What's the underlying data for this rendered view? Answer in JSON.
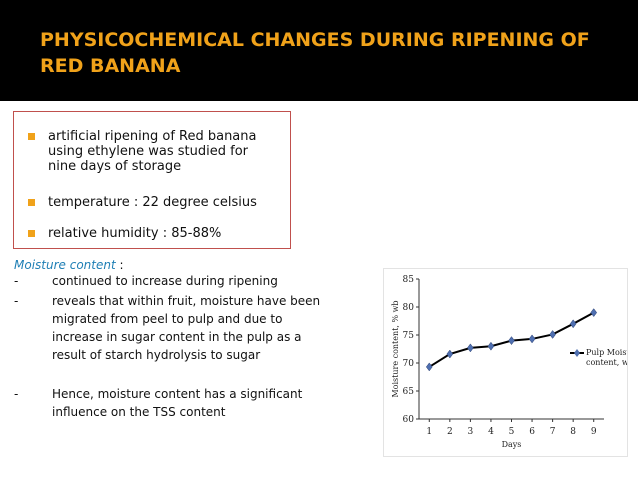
{
  "slide": {
    "title": "PHYSICOCHEMICAL CHANGES DURING RIPENING OF RED BANANA",
    "accent_color": "#f0a21a",
    "box_border_color": "#c0504d",
    "bullets": [
      {
        "text": "artificial ripening of Red banana using ethylene was studied for nine days of storage"
      },
      {
        "text": "temperature : 22 degree celsius"
      },
      {
        "text": "relative humidity : 85-88%"
      }
    ],
    "moisture": {
      "heading": "Moisture content",
      "colon": " :",
      "points": [
        {
          "dash": "-",
          "text": "continued to increase during ripening"
        },
        {
          "dash": "-",
          "text": "reveals that within fruit, moisture have been migrated from peel to pulp and due to increase in sugar content in the pulp as a result of starch hydrolysis to sugar"
        },
        {
          "dash": "-",
          "text": "Hence, moisture content has a significant influence on the TSS content"
        }
      ]
    }
  },
  "chart_data": {
    "type": "line",
    "xlabel": "Days",
    "ylabel": "Moisture content, % wb",
    "x": [
      1,
      2,
      3,
      4,
      5,
      6,
      7,
      8,
      9
    ],
    "xlim": [
      0.5,
      9.5
    ],
    "ylim": [
      60,
      85
    ],
    "yticks": [
      60,
      65,
      70,
      75,
      80,
      85
    ],
    "series": [
      {
        "name": "Pulp Moisture content, wb",
        "values": [
          69.3,
          71.6,
          72.7,
          73.0,
          74.0,
          74.3,
          75.1,
          77.0,
          79.0
        ]
      }
    ],
    "legend_position": "right",
    "grid": false,
    "line_color": "#000000",
    "marker_color": "#4f6fb0"
  }
}
